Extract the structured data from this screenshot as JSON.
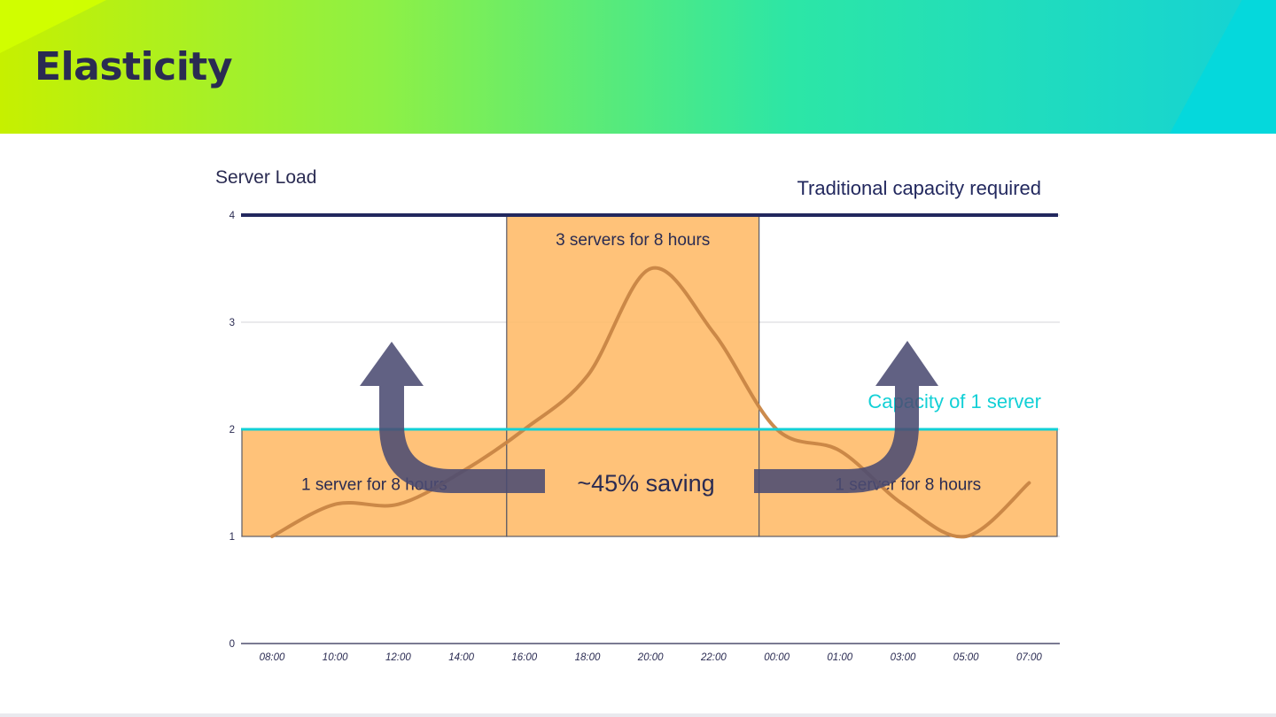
{
  "slide": {
    "title": "Elasticity"
  },
  "chart_data": {
    "type": "line",
    "title": "",
    "ylabel": "Server Load",
    "xlabel": "",
    "ylim": [
      0,
      4
    ],
    "yticks": [
      "0",
      "1",
      "2",
      "3",
      "4"
    ],
    "categories": [
      "08:00",
      "10:00",
      "12:00",
      "14:00",
      "16:00",
      "18:00",
      "20:00",
      "22:00",
      "00:00",
      "01:00",
      "03:00",
      "05:00",
      "07:00"
    ],
    "series": [
      {
        "name": "Server load",
        "values": [
          1.0,
          1.3,
          1.3,
          1.6,
          2.0,
          2.5,
          3.5,
          2.9,
          2.0,
          1.8,
          1.3,
          1.0,
          1.5
        ]
      }
    ],
    "reference_lines": [
      {
        "name": "traditional",
        "label": "Traditional capacity required",
        "y": 4,
        "color": "#22285e"
      },
      {
        "name": "one-server",
        "label": "Capacity of 1 server",
        "y": 2,
        "color": "#12d0d6"
      }
    ],
    "capacity_boxes": [
      {
        "name": "left",
        "label": "1 server for 8 hours",
        "from": "08:00",
        "to": "16:00",
        "y0": 1,
        "y1": 2
      },
      {
        "name": "middle",
        "label": "3 servers for 8 hours",
        "from": "16:00",
        "to": "00:00",
        "y0": 1,
        "y1": 4
      },
      {
        "name": "right",
        "label": "1 server for 8 hours",
        "from": "00:00",
        "to": "07:00",
        "y0": 1,
        "y1": 2
      }
    ],
    "annotation": "~45% saving"
  },
  "colors": {
    "accent": "#2a2b52",
    "box": "#ffb966",
    "line": "#c88545",
    "arrow": "#4b4b72",
    "cyan": "#12d0d6"
  }
}
